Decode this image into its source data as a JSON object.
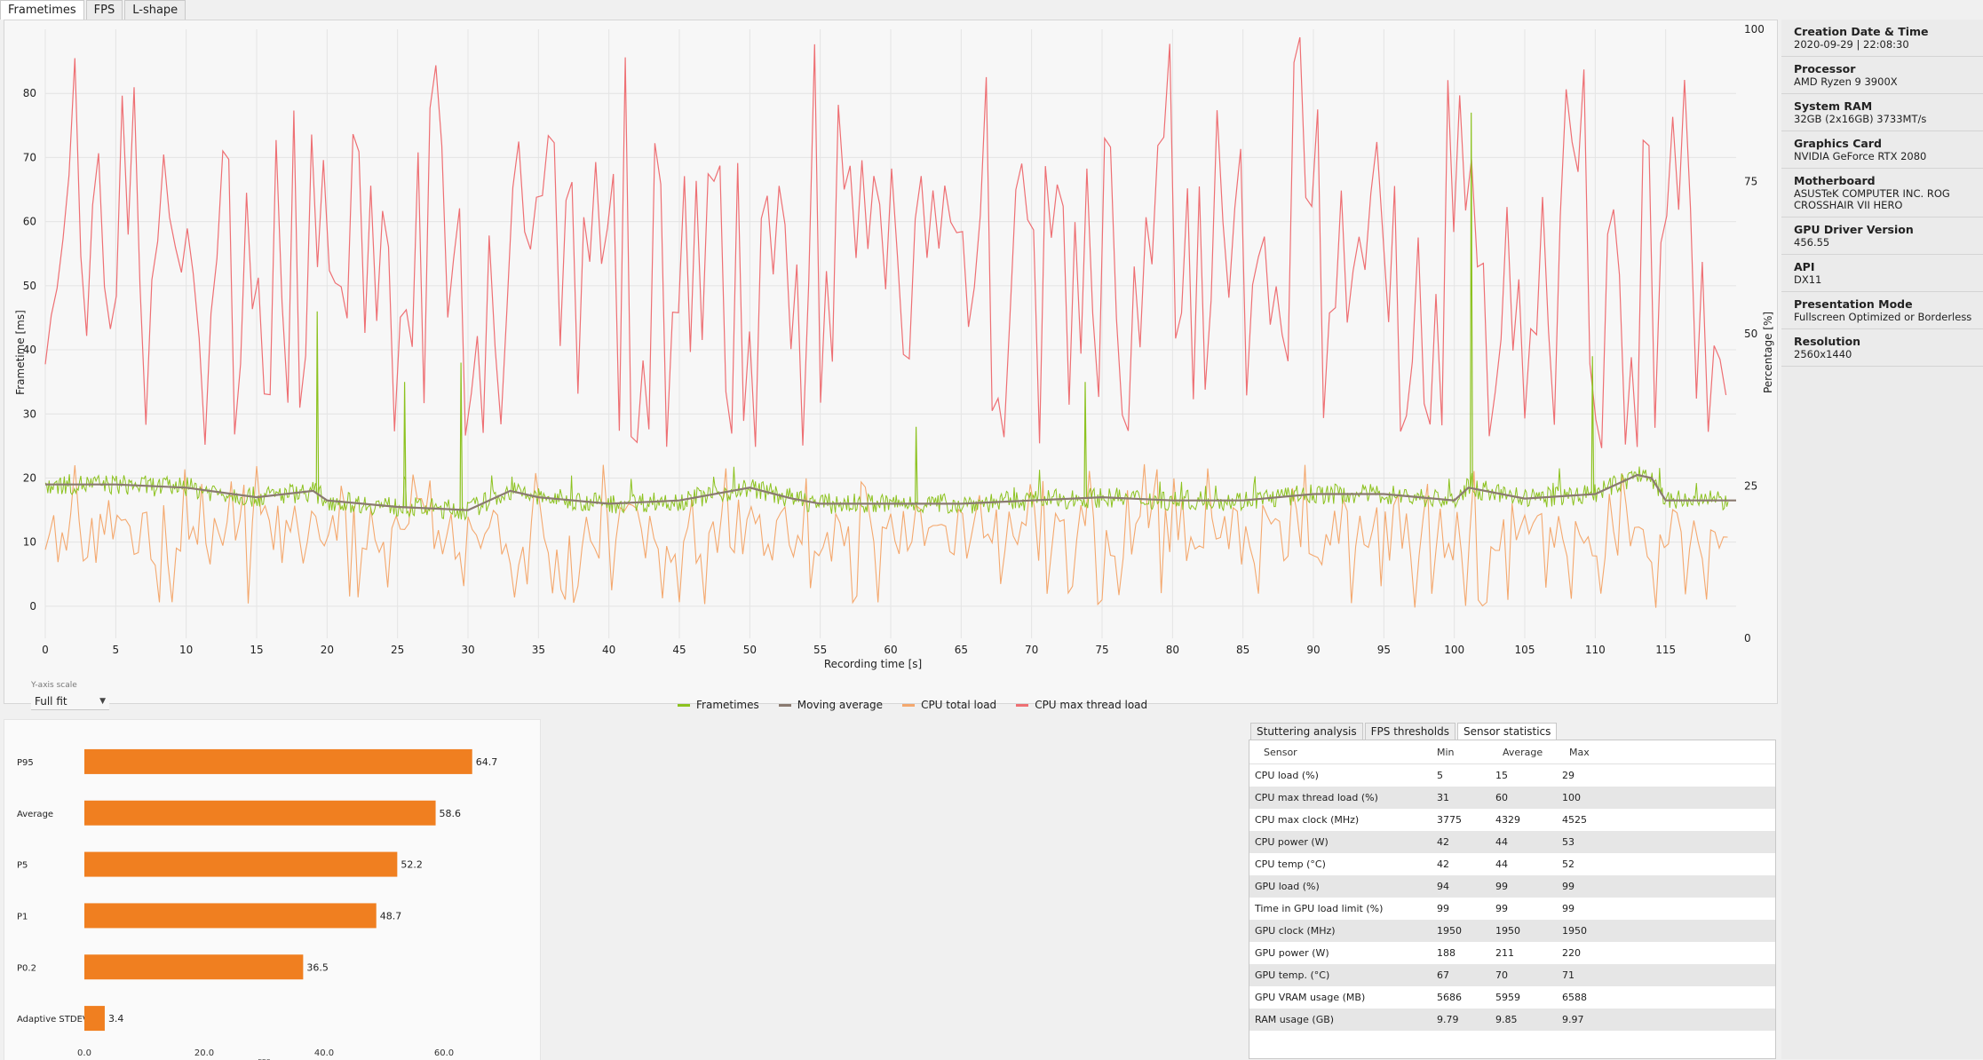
{
  "tabs": [
    "Frametimes",
    "FPS",
    "L-shape"
  ],
  "chart": {
    "y_left_label": "Frametime [ms]",
    "y_right_label": "Percentage [%]",
    "x_label": "Recording time [s]",
    "y_scale_label": "Y-axis scale",
    "y_scale_value": "Full fit",
    "colors": {
      "frametimes": "#8cc21f",
      "moving_avg": "#8a7a70",
      "cpu_total": "#f4a86e",
      "cpu_max_thread": "#ee6f73"
    }
  },
  "legend": [
    "Frametimes",
    "Moving average",
    "CPU total load",
    "CPU max thread load"
  ],
  "chart_data": {
    "type": "line",
    "title": "",
    "xlabel": "Recording time [s]",
    "ylabel": "Frametime [ms]",
    "y2label": "Percentage [%]",
    "xlim": [
      0,
      120
    ],
    "ylim": [
      -5,
      90
    ],
    "y2lim": [
      0,
      100
    ],
    "xticks": [
      "0",
      "5",
      "10",
      "15",
      "20",
      "25",
      "30",
      "35",
      "40",
      "45",
      "50",
      "55",
      "60",
      "65",
      "70",
      "75",
      "80",
      "85",
      "90",
      "95",
      "100",
      "105",
      "110",
      "115"
    ],
    "yticks": [
      "0",
      "10",
      "20",
      "30",
      "40",
      "50",
      "60",
      "70",
      "80"
    ],
    "y2ticks": [
      "0",
      "25",
      "50",
      "75",
      "100"
    ],
    "series": [
      {
        "name": "Frametimes",
        "axis": "left",
        "approx_mean_ms": 17,
        "spikes": [
          {
            "x": 19.3,
            "y": 46
          },
          {
            "x": 25.5,
            "y": 35
          },
          {
            "x": 29.5,
            "y": 38
          },
          {
            "x": 61.8,
            "y": 28
          },
          {
            "x": 73.8,
            "y": 35
          },
          {
            "x": 101.2,
            "y": 77
          },
          {
            "x": 109.8,
            "y": 39
          }
        ]
      },
      {
        "name": "Moving average",
        "axis": "left",
        "x": [
          0,
          5,
          10,
          15,
          19,
          20,
          25,
          30,
          33,
          35,
          40,
          45,
          50,
          53,
          55,
          60,
          65,
          70,
          75,
          80,
          85,
          90,
          95,
          100,
          101,
          105,
          110,
          113,
          114,
          115,
          120
        ],
        "values": [
          19,
          19,
          18.5,
          17,
          18,
          16.5,
          15.5,
          15,
          18,
          17,
          16,
          16.5,
          18.5,
          16.8,
          16,
          16,
          16,
          16.5,
          17,
          16.5,
          16.5,
          17.5,
          17.5,
          16.5,
          18.5,
          16.8,
          17.5,
          20.5,
          20,
          16.5,
          16.5
        ]
      },
      {
        "name": "CPU total load",
        "axis": "right",
        "range_percent": [
          5,
          29
        ]
      },
      {
        "name": "CPU max thread load",
        "axis": "right",
        "range_percent": [
          31,
          100
        ]
      }
    ]
  },
  "system_info": [
    {
      "title": "Creation Date & Time",
      "value": "2020-09-29  |  22:08:30"
    },
    {
      "title": "Processor",
      "value": "AMD Ryzen 9 3900X"
    },
    {
      "title": "System RAM",
      "value": "32GB (2x16GB) 3733MT/s"
    },
    {
      "title": "Graphics Card",
      "value": "NVIDIA GeForce RTX 2080"
    },
    {
      "title": "Motherboard",
      "value": "ASUSTeK COMPUTER INC. ROG CROSSHAIR VII HERO"
    },
    {
      "title": "GPU Driver Version",
      "value": "456.55"
    },
    {
      "title": "API",
      "value": "DX11"
    },
    {
      "title": "Presentation Mode",
      "value": "Fullscreen Optimized or Borderless"
    },
    {
      "title": "Resolution",
      "value": "2560x1440"
    }
  ],
  "bar_chart": {
    "type": "bar",
    "orientation": "horizontal",
    "categories": [
      "P95",
      "Average",
      "P5",
      "P1",
      "P0.2",
      "Adaptive STDEV"
    ],
    "values": [
      64.7,
      58.6,
      52.2,
      48.7,
      36.5,
      3.4
    ],
    "value_labels": [
      "64.7",
      "58.6",
      "52.2",
      "48.7",
      "36.5",
      "3.4"
    ],
    "xticks": [
      "0.0",
      "20.0",
      "40.0",
      "60.0"
    ],
    "xlabel": "FPS",
    "xlim": [
      0,
      60
    ],
    "color": "#f07f20"
  },
  "sensor_tabs": [
    "Stuttering analysis",
    "FPS thresholds",
    "Sensor statistics"
  ],
  "sensor_headers": [
    "Sensor",
    "Min",
    "Average",
    "Max"
  ],
  "sensor_rows": [
    {
      "sensor": "CPU load (%)",
      "min": "5",
      "avg": "15",
      "max": "29"
    },
    {
      "sensor": "CPU max thread load (%)",
      "min": "31",
      "avg": "60",
      "max": "100"
    },
    {
      "sensor": "CPU max clock (MHz)",
      "min": "3775",
      "avg": "4329",
      "max": "4525"
    },
    {
      "sensor": "CPU power (W)",
      "min": "42",
      "avg": "44",
      "max": "53"
    },
    {
      "sensor": "CPU temp (°C)",
      "min": "42",
      "avg": "44",
      "max": "52"
    },
    {
      "sensor": "GPU load (%)",
      "min": "94",
      "avg": "99",
      "max": "99"
    },
    {
      "sensor": "Time in GPU load limit (%)",
      "min": "99",
      "avg": "99",
      "max": "99"
    },
    {
      "sensor": "GPU clock (MHz)",
      "min": "1950",
      "avg": "1950",
      "max": "1950"
    },
    {
      "sensor": "GPU power (W)",
      "min": "188",
      "avg": "211",
      "max": "220"
    },
    {
      "sensor": "GPU temp. (°C)",
      "min": "67",
      "avg": "70",
      "max": "71"
    },
    {
      "sensor": "GPU VRAM usage (MB)",
      "min": "5686",
      "avg": "5959",
      "max": "6588"
    },
    {
      "sensor": "RAM usage (GB)",
      "min": "9.79",
      "avg": "9.85",
      "max": "9.97"
    }
  ]
}
